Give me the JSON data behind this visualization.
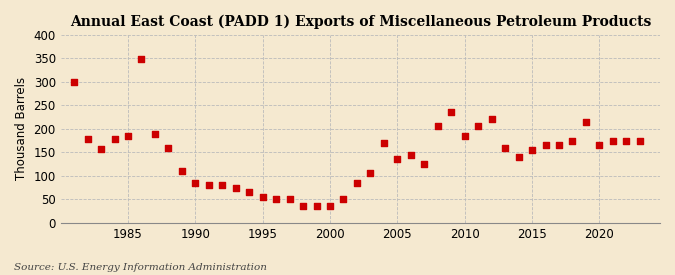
{
  "title": "Annual East Coast (PADD 1) Exports of Miscellaneous Petroleum Products",
  "ylabel": "Thousand Barrels",
  "source": "Source: U.S. Energy Information Administration",
  "years": [
    1981,
    1982,
    1983,
    1984,
    1985,
    1986,
    1987,
    1988,
    1989,
    1990,
    1991,
    1992,
    1993,
    1994,
    1995,
    1996,
    1997,
    1998,
    1999,
    2000,
    2001,
    2002,
    2003,
    2004,
    2005,
    2006,
    2007,
    2008,
    2009,
    2010,
    2011,
    2012,
    2013,
    2014,
    2015,
    2016,
    2017,
    2018,
    2019,
    2020,
    2021,
    2022,
    2023
  ],
  "values": [
    300,
    178,
    158,
    178,
    185,
    348,
    190,
    160,
    110,
    85,
    80,
    80,
    75,
    65,
    55,
    50,
    50,
    35,
    35,
    35,
    50,
    85,
    105,
    170,
    135,
    145,
    125,
    205,
    235,
    185,
    205,
    220,
    160,
    140,
    155,
    165,
    165,
    175,
    215,
    165,
    175,
    175,
    175
  ],
  "marker_color": "#cc0000",
  "marker_size": 4,
  "bg_color": "#f5e9d0",
  "plot_bg_color": "#f5e9d0",
  "ylim": [
    0,
    400
  ],
  "yticks": [
    0,
    50,
    100,
    150,
    200,
    250,
    300,
    350,
    400
  ],
  "xticks": [
    1985,
    1990,
    1995,
    2000,
    2005,
    2010,
    2015,
    2020
  ],
  "grid_color": "#bbbbbb",
  "title_fontsize": 10,
  "axis_fontsize": 8.5,
  "source_fontsize": 7.5
}
